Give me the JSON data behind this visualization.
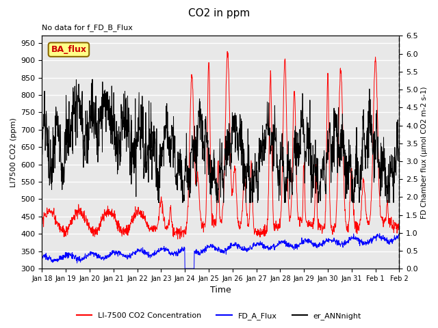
{
  "title": "CO2 in ppm",
  "top_left_text": "No data for f_FD_B_Flux",
  "legend_box_text": "BA_flux",
  "xlabel": "Time",
  "ylabel_left": "LI7500 CO2 (ppm)",
  "ylabel_right": "FD Chamber flux (μmol CO2 m-2 s-1)",
  "ylim_left": [
    300,
    970
  ],
  "ylim_right": [
    0.0,
    6.5
  ],
  "yticks_left": [
    300,
    350,
    400,
    450,
    500,
    550,
    600,
    650,
    700,
    750,
    800,
    850,
    900,
    950
  ],
  "yticks_right": [
    0.0,
    0.5,
    1.0,
    1.5,
    2.0,
    2.5,
    3.0,
    3.5,
    4.0,
    4.5,
    5.0,
    5.5,
    6.0,
    6.5
  ],
  "xtick_labels": [
    "Jan 18",
    "Jan 19",
    "Jan 20",
    "Jan 21",
    "Jan 22",
    "Jan 23",
    "Jan 24",
    "Jan 25",
    "Jan 26",
    "Jan 27",
    "Jan 28",
    "Jan 29",
    "Jan 30",
    "Jan 31",
    "Feb 1",
    "Feb 2"
  ],
  "color_red": "#FF0000",
  "color_blue": "#0000FF",
  "color_black": "#000000",
  "legend_items": [
    "LI-7500 CO2 Concentration",
    "FD_A_Flux",
    "er_ANNnight"
  ],
  "background_color": "#FFFFFF",
  "plot_bg_color": "#E8E8E8",
  "grid_color": "#FFFFFF",
  "right_spine_color": "#555555"
}
